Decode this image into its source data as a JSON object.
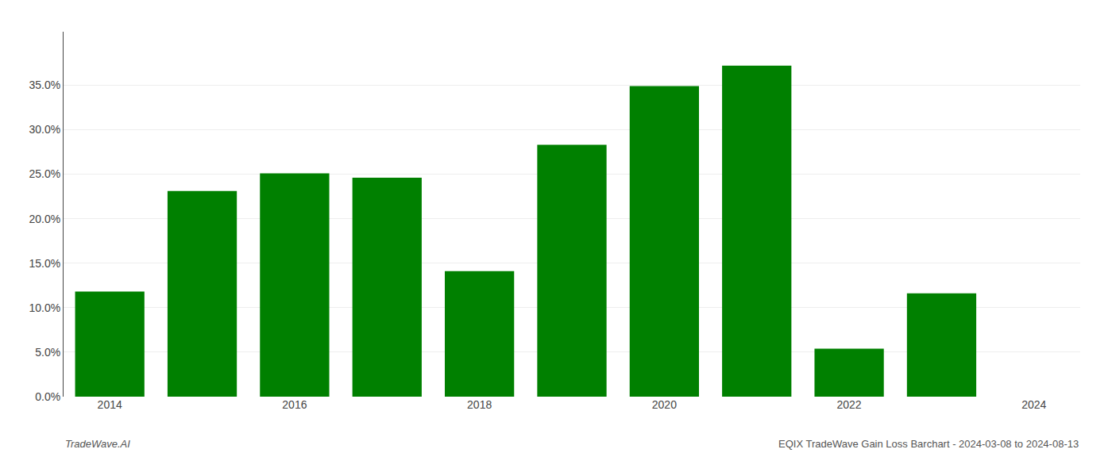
{
  "chart_data": {
    "type": "bar",
    "categories": [
      "2014",
      null,
      "2016",
      null,
      "2018",
      null,
      "2020",
      null,
      "2022",
      null,
      "2024"
    ],
    "values": [
      0.118,
      0.231,
      0.251,
      0.246,
      0.141,
      0.283,
      0.349,
      0.372,
      0.054,
      0.116,
      0.0
    ],
    "color": "#008000",
    "ylim": [
      0,
      0.41
    ],
    "yticks": [
      {
        "value": 0.0,
        "label": "0.0%"
      },
      {
        "value": 0.05,
        "label": "5.0%"
      },
      {
        "value": 0.1,
        "label": "10.0%"
      },
      {
        "value": 0.15,
        "label": "15.0%"
      },
      {
        "value": 0.2,
        "label": "20.0%"
      },
      {
        "value": 0.25,
        "label": "25.0%"
      },
      {
        "value": 0.3,
        "label": "30.0%"
      },
      {
        "value": 0.35,
        "label": "35.0%"
      }
    ],
    "grid": true,
    "annotations": [
      "TradeWave.AI",
      "EQIX TradeWave Gain Loss Barchart - 2024-03-08 to 2024-08-13"
    ]
  }
}
